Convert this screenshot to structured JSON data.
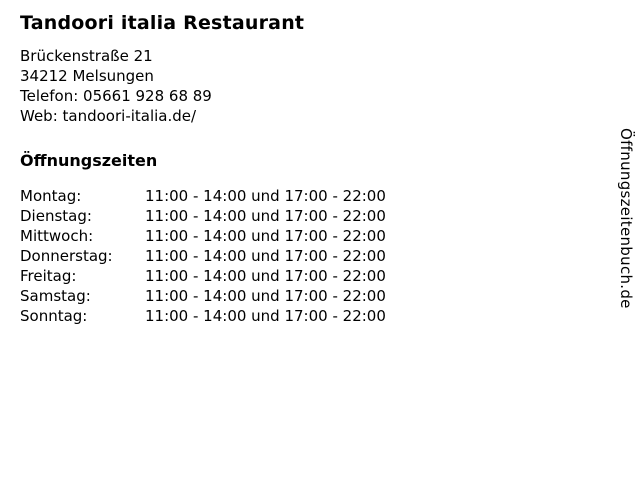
{
  "restaurant": {
    "title": "Tandoori italia Restaurant",
    "address_line1": "Brückenstraße 21",
    "address_line2": "34212 Melsungen",
    "phone_line": "Telefon: 05661 928 68 89",
    "web_line": "Web: tandoori-italia.de/"
  },
  "opening_hours": {
    "heading": "Öffnungszeiten",
    "rows": [
      {
        "day": "Montag:",
        "hours": "11:00 - 14:00 und 17:00 - 22:00"
      },
      {
        "day": "Dienstag:",
        "hours": "11:00 - 14:00 und 17:00 - 22:00"
      },
      {
        "day": "Mittwoch:",
        "hours": "11:00 - 14:00 und 17:00 - 22:00"
      },
      {
        "day": "Donnerstag:",
        "hours": "11:00 - 14:00 und 17:00 - 22:00"
      },
      {
        "day": "Freitag:",
        "hours": "11:00 - 14:00 und 17:00 - 22:00"
      },
      {
        "day": "Samstag:",
        "hours": "11:00 - 14:00 und 17:00 - 22:00"
      },
      {
        "day": "Sonntag:",
        "hours": "11:00 - 14:00 und 17:00 - 22:00"
      }
    ]
  },
  "watermark": {
    "text": "Öffnungszeitenbuch.de"
  },
  "colors": {
    "text": "#000000",
    "background": "#ffffff"
  }
}
